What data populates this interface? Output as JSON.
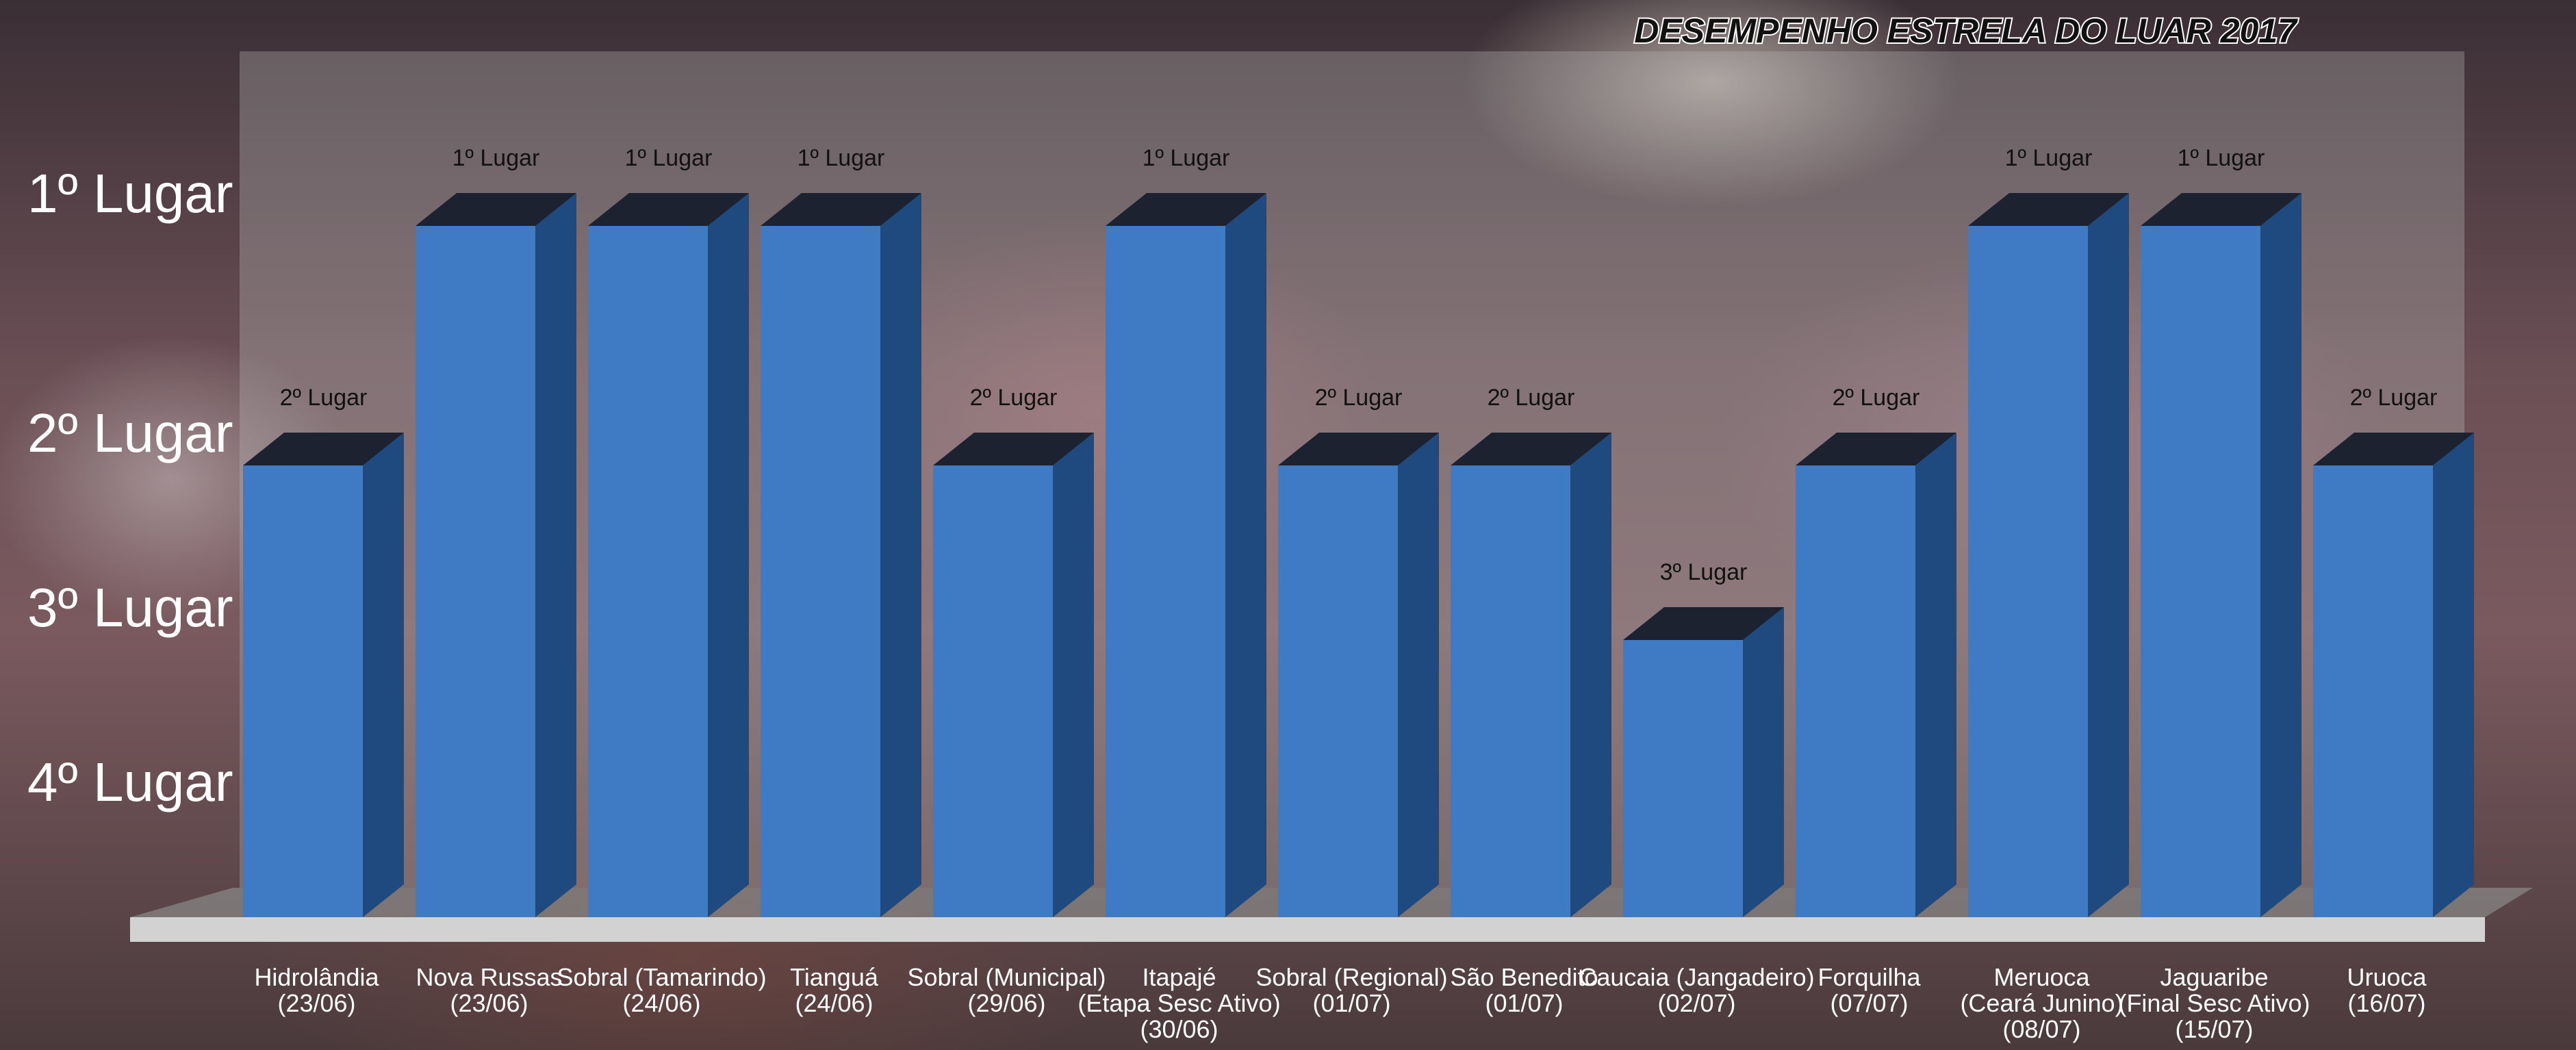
{
  "chart_data": {
    "type": "bar",
    "title": "DESEMPENHO ESTRELA DO LUAR 2017",
    "categories": [
      [
        "Hidrolândia",
        "(23/06)"
      ],
      [
        "Nova Russas",
        "(23/06)"
      ],
      [
        "Sobral (Tamarindo)",
        "(24/06)"
      ],
      [
        "Tianguá",
        "(24/06)"
      ],
      [
        "Sobral (Municipal)",
        "(29/06)"
      ],
      [
        "Itapajé",
        "(Etapa Sesc Ativo)",
        "(30/06)"
      ],
      [
        "Sobral (Regional)",
        "(01/07)"
      ],
      [
        "São Benedito",
        "(01/07)"
      ],
      [
        "Caucaia (Jangadeiro)",
        "(02/07)"
      ],
      [
        "Forquilha",
        "(07/07)"
      ],
      [
        "Meruoca",
        "(Ceará Junino)",
        "(08/07)"
      ],
      [
        "Jaguaribe",
        "(Final Sesc Ativo)",
        "(15/07)"
      ],
      [
        "Uruoca",
        "(16/07)"
      ]
    ],
    "values": [
      2,
      1,
      1,
      1,
      2,
      1,
      2,
      2,
      3,
      2,
      1,
      1,
      2
    ],
    "data_labels": [
      "2º Lugar",
      "1º Lugar",
      "1º Lugar",
      "1º Lugar",
      "2º Lugar",
      "1º Lugar",
      "2º Lugar",
      "2º Lugar",
      "3º Lugar",
      "2º Lugar",
      "1º Lugar",
      "1º Lugar",
      "2º Lugar"
    ],
    "y_ticks": [
      "1º Lugar",
      "2º Lugar",
      "3º Lugar",
      "4º Lugar"
    ],
    "y_axis": "inverted placing: 1 at top, 4 at bottom",
    "ylim": [
      1,
      4
    ],
    "grid": false,
    "legend": "none",
    "colors": {
      "bar_front": "#3f7ac4",
      "bar_side": "#1f4a80",
      "bar_top": "#1c2230",
      "back_wall": "#b4b4b4",
      "floor": "#d2d2d2",
      "title": "#111111",
      "tick": "#ffffff",
      "category": "#ffffff",
      "data_label": "#111111"
    }
  }
}
